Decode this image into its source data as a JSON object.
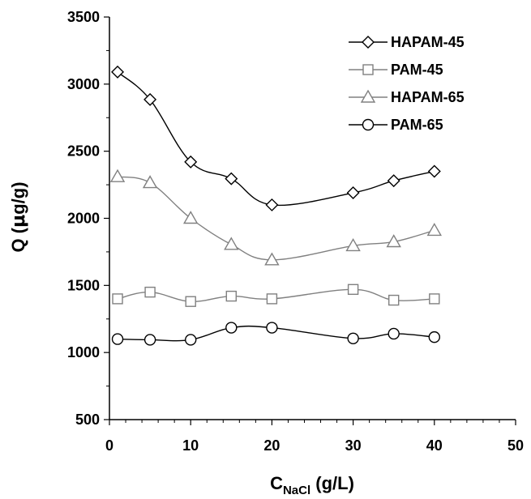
{
  "chart_data": {
    "type": "line",
    "title": "",
    "xlabel_main": "C",
    "xlabel_sub": "NaCl",
    "xlabel_unit": " (g/L)",
    "ylabel_prefix": "Q (",
    "ylabel_greek": "μ",
    "ylabel_suffix": "g/g)",
    "xlim": [
      0,
      50
    ],
    "ylim": [
      500,
      3500
    ],
    "xticks": [
      0,
      10,
      20,
      30,
      40,
      50
    ],
    "yticks": [
      500,
      1000,
      1500,
      2000,
      2500,
      3000,
      3500
    ],
    "grid": false,
    "legend_position": "top-right",
    "x": [
      1,
      5,
      10,
      15,
      20,
      30,
      35,
      40
    ],
    "series": [
      {
        "name": "HAPAM-45",
        "marker": "diamond",
        "color": "#000000",
        "values": [
          3090,
          2885,
          2420,
          2295,
          2100,
          2190,
          2280,
          2350
        ]
      },
      {
        "name": "PAM-45",
        "marker": "square",
        "color": "#808080",
        "values": [
          1400,
          1450,
          1380,
          1420,
          1400,
          1470,
          1390,
          1400
        ]
      },
      {
        "name": "HAPAM-65",
        "marker": "triangle",
        "color": "#808080",
        "values": [
          2310,
          2265,
          2000,
          1805,
          1690,
          1795,
          1825,
          1910
        ]
      },
      {
        "name": "PAM-65",
        "marker": "circle",
        "color": "#000000",
        "values": [
          1100,
          1095,
          1095,
          1185,
          1185,
          1105,
          1140,
          1115
        ]
      }
    ]
  }
}
